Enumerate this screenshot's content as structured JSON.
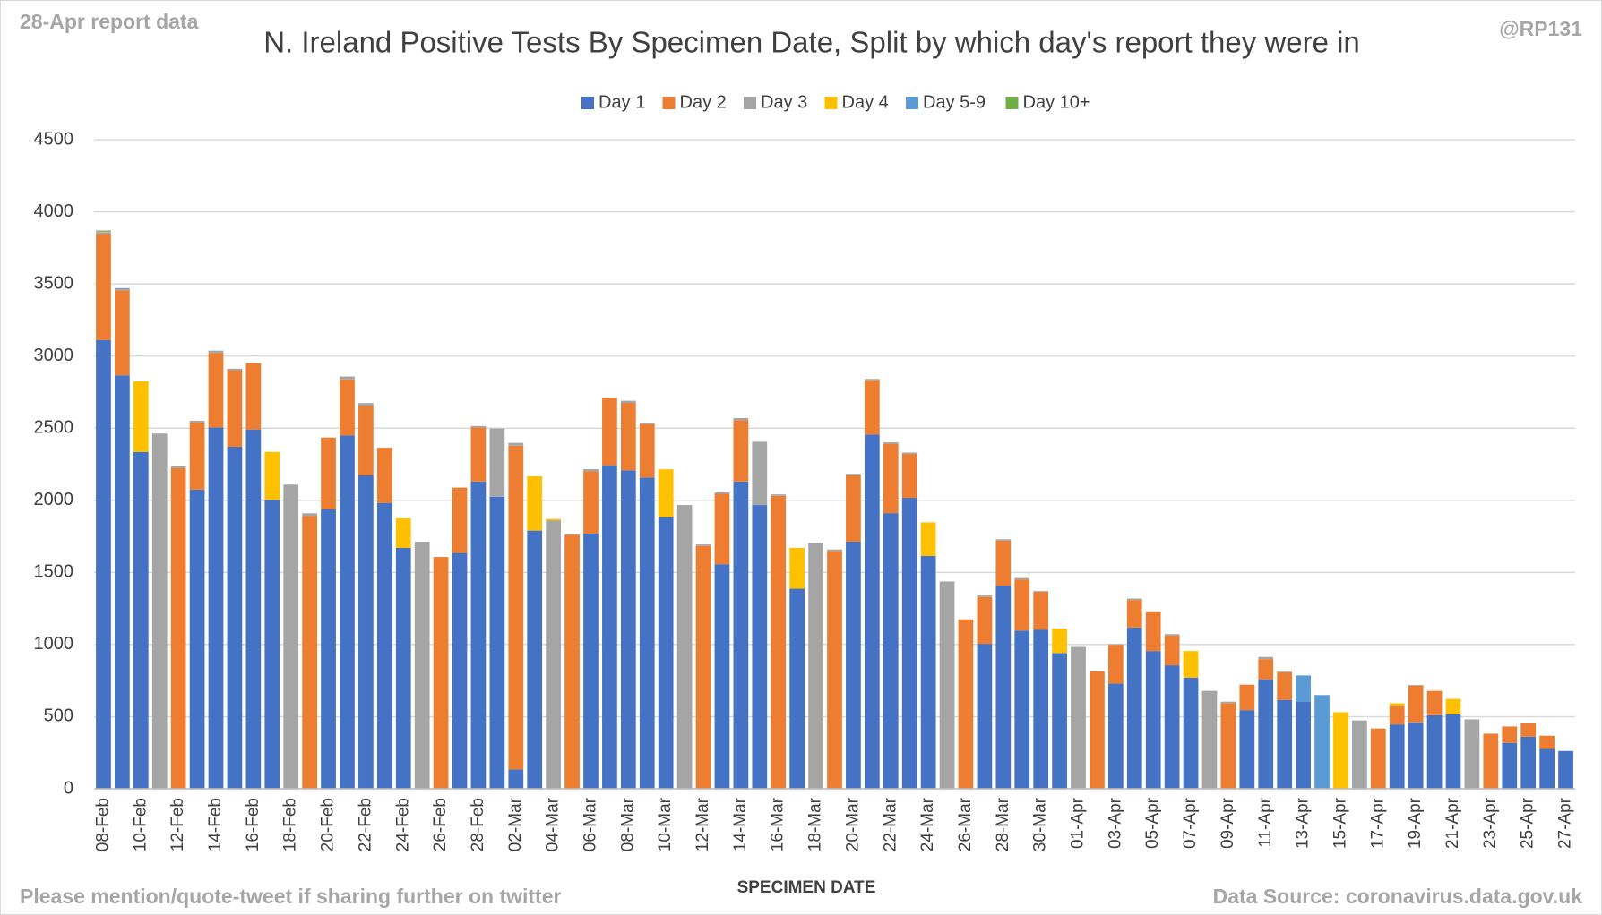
{
  "chart_data": {
    "type": "stacked_bar",
    "title": "N. Ireland Positive Tests By Specimen Date, Split by which day's report they were in",
    "note": "28-Apr report data",
    "credit": "@RP131",
    "footer": "Please mention/quote-tweet if sharing further on twitter",
    "source": "Data Source: coronavirus.data.gov.uk",
    "x_label": "SPECIMEN DATE",
    "legend": "top",
    "grid": true,
    "ylim": [
      0,
      4500
    ],
    "yticks": [
      0,
      500,
      1000,
      1500,
      2000,
      2500,
      3000,
      3500,
      4000,
      4500
    ],
    "categories": [
      "08-Feb",
      null,
      "10-Feb",
      null,
      "12-Feb",
      null,
      "14-Feb",
      null,
      "16-Feb",
      null,
      "18-Feb",
      null,
      "20-Feb",
      null,
      "22-Feb",
      null,
      "24-Feb",
      null,
      "26-Feb",
      null,
      "28-Feb",
      null,
      "02-Mar",
      null,
      "04-Mar",
      null,
      "06-Mar",
      null,
      "08-Mar",
      null,
      "10-Mar",
      null,
      "12-Mar",
      null,
      "14-Mar",
      null,
      "16-Mar",
      null,
      "18-Mar",
      null,
      "20-Mar",
      null,
      "22-Mar",
      null,
      "24-Mar",
      null,
      "26-Mar",
      null,
      "28-Mar",
      null,
      "30-Mar",
      null,
      "01-Apr",
      null,
      "03-Apr",
      null,
      "05-Apr",
      null,
      "07-Apr",
      null,
      "09-Apr",
      null,
      "11-Apr",
      null,
      "13-Apr",
      null,
      "15-Apr",
      null,
      "17-Apr",
      null,
      "19-Apr",
      null,
      "21-Apr",
      null,
      "23-Apr",
      null,
      "25-Apr",
      null,
      "27-Apr"
    ],
    "series": [
      {
        "name": "Day 1",
        "color": "#4472c4",
        "values": [
          3110,
          2866,
          2335,
          0,
          0,
          2074,
          2505,
          2371,
          2491,
          2003,
          0,
          0,
          1939,
          2449,
          2173,
          1982,
          1670,
          0,
          0,
          1635,
          2130,
          2024,
          134,
          1790,
          0,
          0,
          1769,
          2243,
          2208,
          2158,
          1883,
          0,
          0,
          1557,
          2130,
          1967,
          0,
          1387,
          0,
          0,
          1713,
          2456,
          1911,
          2017,
          1614,
          0,
          0,
          1005,
          1408,
          1097,
          1104,
          941,
          0,
          0,
          729,
          1118,
          955,
          856,
          771,
          0,
          0,
          545,
          757,
          616,
          602,
          0,
          0,
          0,
          0,
          446,
          460,
          510,
          517,
          0,
          0,
          318,
          361,
          276,
          262
        ]
      },
      {
        "name": "Day 2",
        "color": "#ed7d31",
        "values": [
          735,
          590,
          0,
          0,
          2222,
          467,
          517,
          531,
          460,
          0,
          0,
          1890,
          496,
          389,
          481,
          382,
          0,
          0,
          1607,
          453,
          375,
          0,
          2244,
          0,
          0,
          1762,
          432,
          468,
          467,
          369,
          0,
          0,
          1684,
          488,
          425,
          0,
          2031,
          0,
          0,
          1649,
          460,
          375,
          481,
          304,
          0,
          0,
          1175,
          325,
          312,
          354,
          262,
          0,
          0,
          814,
          269,
          191,
          269,
          206,
          0,
          0,
          594,
          177,
          142,
          191,
          0,
          0,
          0,
          0,
          418,
          127,
          255,
          169,
          0,
          0,
          382,
          114,
          92,
          92,
          0
        ]
      },
      {
        "name": "Day 3",
        "color": "#a5a5a5",
        "values": [
          12,
          10,
          0,
          2463,
          15,
          10,
          15,
          10,
          0,
          0,
          2109,
          20,
          0,
          20,
          20,
          0,
          0,
          1713,
          0,
          0,
          10,
          474,
          20,
          0,
          1861,
          0,
          15,
          0,
          15,
          10,
          0,
          1967,
          10,
          10,
          15,
          439,
          10,
          0,
          1705,
          10,
          10,
          10,
          10,
          10,
          0,
          1437,
          0,
          10,
          10,
          10,
          5,
          0,
          984,
          0,
          5,
          10,
          0,
          10,
          0,
          679,
          10,
          0,
          15,
          5,
          0,
          0,
          0,
          474,
          0,
          0,
          5,
          0,
          0,
          481,
          0,
          0,
          0,
          0,
          0
        ]
      },
      {
        "name": "Day 4",
        "color": "#ffc000",
        "values": [
          5,
          0,
          490,
          0,
          0,
          0,
          0,
          0,
          0,
          332,
          0,
          0,
          0,
          0,
          0,
          0,
          205,
          0,
          0,
          0,
          0,
          0,
          0,
          376,
          10,
          0,
          0,
          0,
          0,
          0,
          332,
          0,
          0,
          0,
          0,
          0,
          0,
          283,
          0,
          0,
          0,
          0,
          0,
          0,
          233,
          0,
          0,
          0,
          0,
          0,
          0,
          170,
          0,
          0,
          0,
          0,
          0,
          0,
          184,
          0,
          0,
          0,
          0,
          0,
          0,
          0,
          531,
          0,
          0,
          20,
          0,
          0,
          106,
          0,
          0,
          0,
          0,
          0,
          0
        ]
      },
      {
        "name": "Day 5-9",
        "color": "#5b9bd5",
        "values": [
          5,
          5,
          0,
          0,
          0,
          0,
          0,
          0,
          0,
          0,
          0,
          0,
          0,
          0,
          0,
          0,
          0,
          0,
          0,
          0,
          0,
          0,
          0,
          0,
          0,
          0,
          0,
          0,
          0,
          0,
          0,
          0,
          0,
          0,
          0,
          0,
          0,
          0,
          0,
          0,
          0,
          0,
          0,
          0,
          0,
          0,
          0,
          0,
          0,
          0,
          0,
          0,
          0,
          0,
          0,
          0,
          0,
          0,
          0,
          0,
          0,
          0,
          0,
          0,
          184,
          650,
          0,
          0,
          0,
          0,
          0,
          0,
          0,
          0,
          0,
          0,
          0,
          0,
          0
        ]
      },
      {
        "name": "Day 10+",
        "color": "#70ad47",
        "values": [
          3,
          0,
          0,
          0,
          0,
          0,
          0,
          0,
          0,
          0,
          0,
          0,
          0,
          0,
          0,
          0,
          0,
          0,
          0,
          0,
          0,
          0,
          0,
          0,
          0,
          0,
          0,
          0,
          0,
          0,
          0,
          0,
          0,
          0,
          0,
          0,
          0,
          0,
          0,
          0,
          0,
          0,
          0,
          0,
          0,
          0,
          0,
          0,
          0,
          0,
          0,
          0,
          0,
          0,
          0,
          0,
          0,
          0,
          0,
          0,
          0,
          0,
          0,
          0,
          0,
          0,
          0,
          0,
          0,
          0,
          0,
          0,
          0,
          0,
          0,
          0,
          0,
          0,
          0
        ]
      }
    ]
  }
}
